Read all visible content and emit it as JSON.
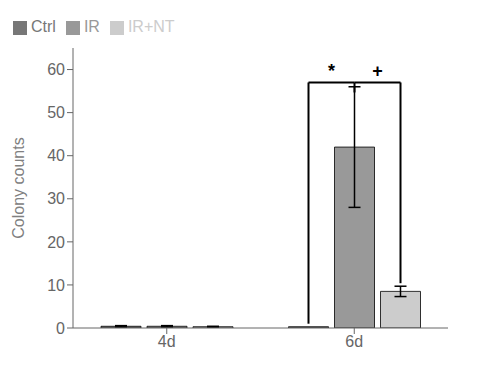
{
  "chart_data": {
    "type": "bar",
    "categories": [
      "4d",
      "6d"
    ],
    "series": [
      {
        "name": "Ctrl",
        "color": "#777777",
        "values": [
          0.4,
          0.3
        ],
        "errors": [
          0.15,
          null
        ]
      },
      {
        "name": "IR",
        "color": "#999999",
        "values": [
          0.4,
          42.0
        ],
        "errors": [
          0.15,
          14.0
        ]
      },
      {
        "name": "IR+NT",
        "color": "#cccccc",
        "values": [
          0.3,
          8.5
        ],
        "errors": [
          0.1,
          1.2
        ]
      }
    ],
    "ylabel": "Colony counts",
    "ylim": [
      0,
      65
    ],
    "yticks": [
      0,
      10,
      20,
      30,
      40,
      50,
      60
    ],
    "grid": false,
    "legend": "upper left",
    "annotations": [
      {
        "text": "*",
        "category": "6d",
        "from": "Ctrl",
        "to": "IR",
        "y": 57.0
      },
      {
        "text": "+",
        "category": "6d",
        "from": "IR",
        "to": "IR+NT",
        "y": 57.0
      }
    ]
  }
}
